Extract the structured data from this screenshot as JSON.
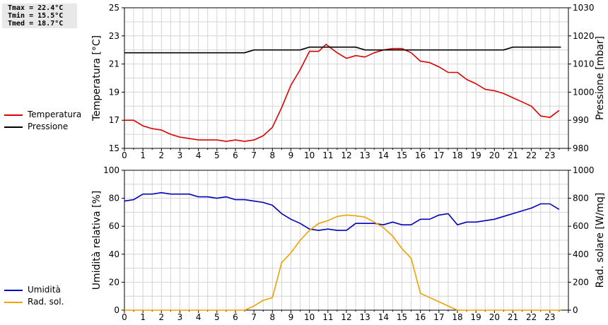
{
  "stats": {
    "tmax": "Tmax = 22.4°C",
    "tmin": "Tmin = 15.5°C",
    "tmed": "Tmed = 18.7°C"
  },
  "legend": {
    "top": [
      {
        "label": "Temperatura",
        "color": "#dd0000"
      },
      {
        "label": "Pressione",
        "color": "#000000"
      }
    ],
    "bottom": [
      {
        "label": "Umidità",
        "color": "#0000bb"
      },
      {
        "label": "Rad. sol.",
        "color": "#f0a000"
      }
    ]
  },
  "chart_data": [
    {
      "type": "line",
      "ylabel": "Temperatura [°C]",
      "y2label": "Pressione [mbar]",
      "ylim": [
        15,
        25
      ],
      "y2lim": [
        980,
        1030
      ],
      "xlim": [
        0,
        24
      ],
      "xticks": [
        "0",
        "1",
        "2",
        "3",
        "4",
        "5",
        "6",
        "7",
        "8",
        "9",
        "10",
        "11",
        "12",
        "13",
        "14",
        "15",
        "16",
        "17",
        "18",
        "19",
        "20",
        "21",
        "22",
        "23"
      ],
      "yticks": [
        15,
        17,
        19,
        21,
        23,
        25
      ],
      "y2ticks": [
        980,
        990,
        1000,
        1010,
        1020,
        1030
      ],
      "grid": true,
      "series": [
        {
          "name": "Temperatura",
          "axis": "left",
          "color": "#dd0000",
          "x": [
            0,
            0.5,
            1,
            1.5,
            2,
            2.5,
            3,
            3.5,
            4,
            4.5,
            5,
            5.5,
            6,
            6.5,
            7,
            7.5,
            8,
            8.5,
            9,
            9.5,
            10,
            10.5,
            10.9,
            11,
            11.5,
            12,
            12.5,
            13,
            13.5,
            14,
            14.5,
            15,
            15.5,
            16,
            16.5,
            17,
            17.5,
            18,
            18.5,
            19,
            19.5,
            20,
            20.5,
            21,
            21.5,
            22,
            22.5,
            23,
            23.5
          ],
          "y": [
            17.0,
            17.0,
            16.6,
            16.4,
            16.3,
            16.0,
            15.8,
            15.7,
            15.6,
            15.6,
            15.6,
            15.5,
            15.6,
            15.5,
            15.6,
            15.9,
            16.5,
            17.9,
            19.5,
            20.6,
            21.9,
            21.9,
            22.4,
            22.3,
            21.8,
            21.4,
            21.6,
            21.5,
            21.8,
            22.0,
            22.1,
            22.1,
            21.8,
            21.2,
            21.1,
            20.8,
            20.4,
            20.4,
            19.9,
            19.6,
            19.2,
            19.1,
            18.9,
            18.6,
            18.3,
            18.0,
            17.3,
            17.2,
            17.7
          ]
        },
        {
          "name": "Pressione",
          "axis": "right",
          "color": "#000000",
          "x": [
            0,
            6.5,
            7,
            9.5,
            10,
            11,
            11.5,
            12,
            12.5,
            13,
            20.5,
            21,
            23.6
          ],
          "y": [
            1014,
            1014,
            1015,
            1015,
            1016,
            1016,
            1016,
            1016,
            1016,
            1015,
            1015,
            1016,
            1016
          ]
        }
      ]
    },
    {
      "type": "line",
      "ylabel": "Umidità relativa [%]",
      "y2label": "Rad. solare [W/mq]",
      "ylim": [
        0,
        100
      ],
      "y2lim": [
        0,
        1000
      ],
      "xlim": [
        0,
        24
      ],
      "xticks": [
        "0",
        "1",
        "2",
        "3",
        "4",
        "5",
        "6",
        "7",
        "8",
        "9",
        "10",
        "11",
        "12",
        "13",
        "14",
        "15",
        "16",
        "17",
        "18",
        "19",
        "20",
        "21",
        "22",
        "23"
      ],
      "yticks": [
        0,
        20,
        40,
        60,
        80,
        100
      ],
      "y2ticks": [
        0,
        200,
        400,
        600,
        800,
        1000
      ],
      "grid": true,
      "series": [
        {
          "name": "Umidità",
          "axis": "left",
          "color": "#0000bb",
          "x": [
            0,
            0.5,
            1,
            1.5,
            2,
            2.5,
            3,
            3.5,
            4,
            4.5,
            5,
            5.5,
            6,
            6.5,
            7,
            7.5,
            8,
            8.5,
            9,
            9.5,
            10,
            10.5,
            11,
            11.5,
            12,
            12.5,
            13,
            13.5,
            14,
            14.5,
            15,
            15.5,
            16,
            16.5,
            17,
            17.5,
            18,
            18.5,
            19,
            19.5,
            20,
            20.5,
            21,
            21.5,
            22,
            22.5,
            23,
            23.5
          ],
          "y": [
            78,
            79,
            83,
            83,
            84,
            83,
            83,
            83,
            81,
            81,
            80,
            81,
            79,
            79,
            78,
            77,
            75,
            69,
            65,
            62,
            58,
            57,
            58,
            57,
            57,
            62,
            62,
            62,
            61,
            63,
            61,
            61,
            65,
            65,
            68,
            69,
            61,
            63,
            63,
            64,
            65,
            67,
            69,
            71,
            73,
            76,
            76,
            72
          ]
        },
        {
          "name": "Rad. sol.",
          "axis": "right",
          "color": "#f0a000",
          "x": [
            0,
            6.5,
            7,
            7.5,
            8,
            8.5,
            9,
            9.5,
            10,
            10.5,
            11,
            11.5,
            12,
            12.5,
            13,
            13.5,
            14,
            14.5,
            15,
            15.5,
            16,
            16.5,
            17,
            17.5,
            18,
            23.6
          ],
          "y": [
            0,
            0,
            30,
            70,
            90,
            340,
            410,
            500,
            570,
            620,
            640,
            670,
            680,
            675,
            665,
            630,
            590,
            530,
            440,
            370,
            120,
            90,
            60,
            30,
            0,
            0
          ]
        }
      ]
    }
  ]
}
